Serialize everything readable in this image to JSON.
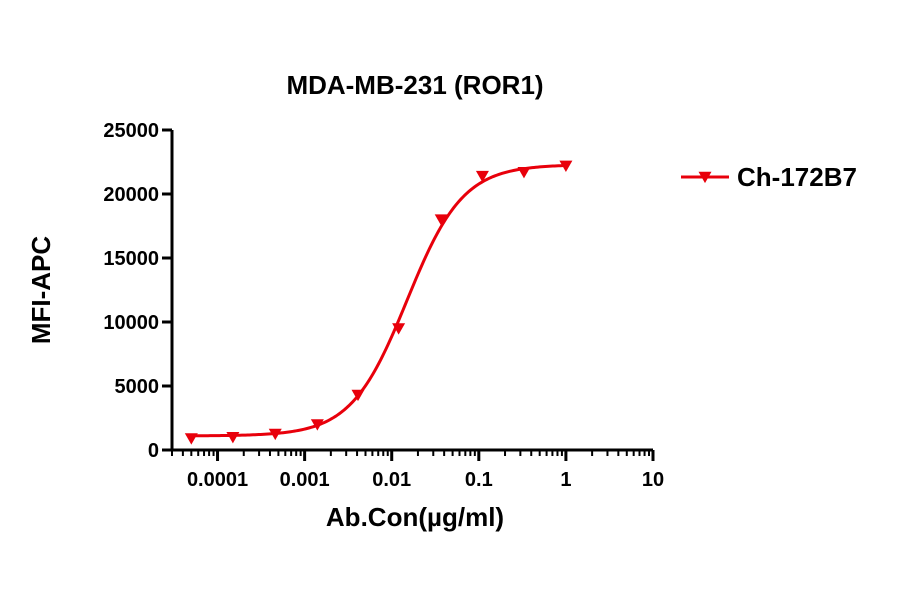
{
  "chart_data": {
    "type": "scatter",
    "title": "MDA-MB-231 (ROR1)",
    "xlabel": "Ab.Con(µg/ml)",
    "ylabel": "MFI-APC",
    "x_scale": "log",
    "xlim": [
      3e-05,
      10
    ],
    "ylim": [
      0,
      25000
    ],
    "x_ticks": [
      0.0001,
      0.001,
      0.01,
      0.1,
      1,
      10
    ],
    "x_tick_labels": [
      "0.0001",
      "0.001",
      "0.01",
      "0.1",
      "1",
      "10"
    ],
    "y_ticks": [
      0,
      5000,
      10000,
      15000,
      20000,
      25000
    ],
    "y_tick_labels": [
      "0",
      "5000",
      "10000",
      "15000",
      "20000",
      "25000"
    ],
    "grid": false,
    "legend_position": "right",
    "series": [
      {
        "name": "Ch-172B7",
        "color": "#e8000b",
        "marker": "triangle-down",
        "x": [
          5e-05,
          0.00015,
          0.00046,
          0.0014,
          0.0041,
          0.012,
          0.037,
          0.11,
          0.33,
          1
        ],
        "y": [
          900,
          1000,
          1250,
          2000,
          4300,
          9500,
          18000,
          21400,
          21700,
          22200
        ],
        "fit": {
          "type": "4PL",
          "bottom": 1100,
          "top": 22300,
          "ec50": 0.015,
          "hill": 1.35
        }
      }
    ]
  }
}
